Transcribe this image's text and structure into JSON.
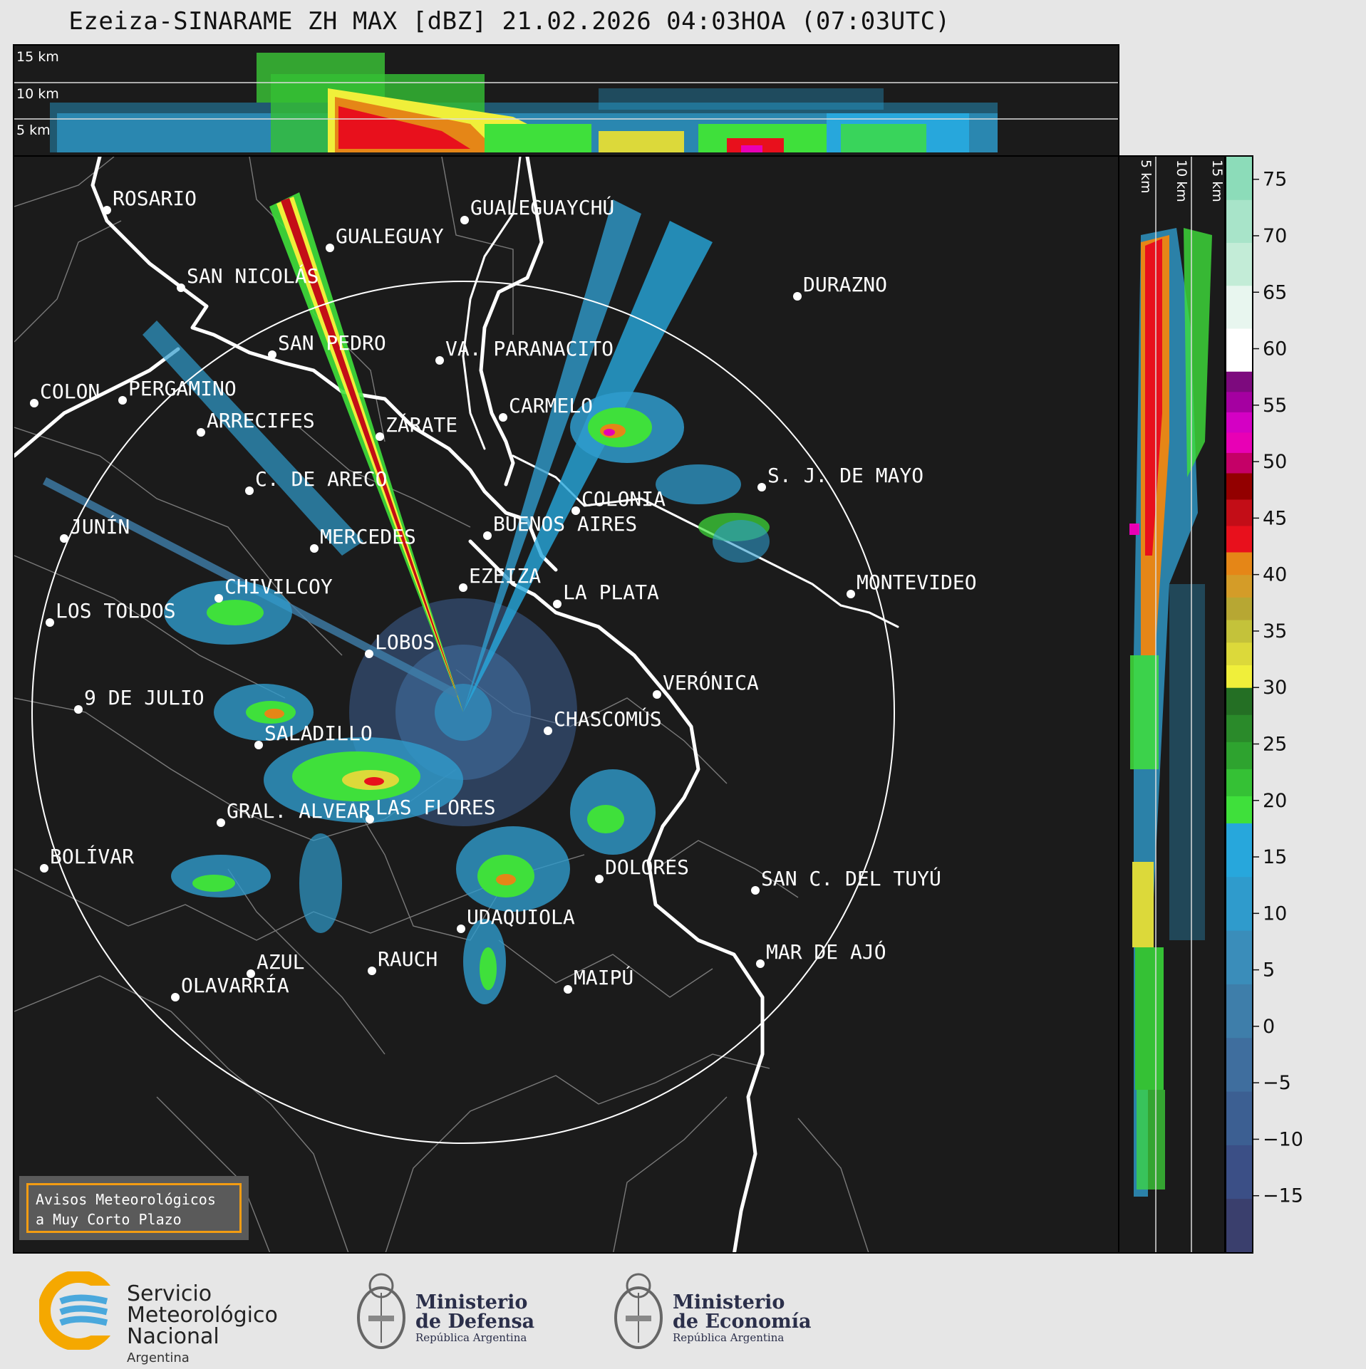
{
  "title": "Ezeiza-SINARAME ZH MAX [dBZ] 21.02.2026 04:03HOA (07:03UTC)",
  "top_panel": {
    "altitude_labels": [
      "15 km",
      "10 km",
      "5 km"
    ]
  },
  "side_panel": {
    "altitude_labels": [
      "5 km",
      "10 km",
      "15 km"
    ]
  },
  "colorbar": {
    "unit": "dBZ",
    "ticks": [
      "75",
      "70",
      "65",
      "60",
      "55",
      "50",
      "45",
      "40",
      "35",
      "30",
      "25",
      "20",
      "15",
      "10",
      "5",
      "0",
      "−5",
      "−10",
      "−15"
    ],
    "range": [
      -20,
      77
    ],
    "bands": [
      {
        "from": -20,
        "to": 18,
        "colors": [
          "#3a3f6d",
          "#3b4f86",
          "#3c5f92",
          "#3f6e9e",
          "#3e7eaa",
          "#3a8dba",
          "#2f9bcc",
          "#27a7dc"
        ]
      },
      {
        "from": 18,
        "to": 30,
        "colors": [
          "#3fe03b",
          "#35c135",
          "#2ea32f",
          "#2a8a2a",
          "#246f24"
        ]
      },
      {
        "from": 30,
        "to": 42,
        "colors": [
          "#f0ef3a",
          "#dcd93a",
          "#c4c23a",
          "#b7a733",
          "#d49c28",
          "#e58617"
        ]
      },
      {
        "from": 42,
        "to": 49,
        "colors": [
          "#e8101c",
          "#c30d17",
          "#930000"
        ]
      },
      {
        "from": 49,
        "to": 58,
        "colors": [
          "#c50067",
          "#e800b5",
          "#d400c4",
          "#a500a1",
          "#7d0a7e"
        ]
      },
      {
        "from": 58,
        "to": 77,
        "colors": [
          "#ffffff",
          "#e8f6ef",
          "#c3ecd7",
          "#a8e4c9",
          "#8cdcb9"
        ]
      }
    ]
  },
  "cities": [
    {
      "name": "ROSARIO"
    },
    {
      "name": "GUALEGUAYCHÚ"
    },
    {
      "name": "GUALEGUAY"
    },
    {
      "name": "SAN NICOLÁS"
    },
    {
      "name": "DURAZNO"
    },
    {
      "name": "SAN PEDRO"
    },
    {
      "name": "VA. PARANACITO"
    },
    {
      "name": "COLON"
    },
    {
      "name": "PERGAMINO"
    },
    {
      "name": "CARMELO"
    },
    {
      "name": "ARRECIFES"
    },
    {
      "name": "ZÁRATE"
    },
    {
      "name": "C. DE ARECO"
    },
    {
      "name": "S. J. DE MAYO"
    },
    {
      "name": "COLONIA"
    },
    {
      "name": "JUNÍN"
    },
    {
      "name": "BUENOS AIRES"
    },
    {
      "name": "MERCEDES"
    },
    {
      "name": "EZEIZA"
    },
    {
      "name": "MONTEVIDEO"
    },
    {
      "name": "CHIVILCOY"
    },
    {
      "name": "LA PLATA"
    },
    {
      "name": "LOS TOLDOS"
    },
    {
      "name": "LOBOS"
    },
    {
      "name": "VERÓNICA"
    },
    {
      "name": "9 DE JULIO"
    },
    {
      "name": "CHASCOMÚS"
    },
    {
      "name": "SALADILLO"
    },
    {
      "name": "GRAL. ALVEAR"
    },
    {
      "name": "LAS FLORES"
    },
    {
      "name": "BOLÍVAR"
    },
    {
      "name": "DOLORES"
    },
    {
      "name": "SAN C. DEL TUYÚ"
    },
    {
      "name": "UDAQUIOLA"
    },
    {
      "name": "AZUL"
    },
    {
      "name": "RAUCH"
    },
    {
      "name": "MAR DE AJÓ"
    },
    {
      "name": "OLAVARRÍA"
    },
    {
      "name": "MAIPÚ"
    }
  ],
  "notice": {
    "line1": "Avisos Meteorológicos",
    "line2": "a Muy Corto Plazo"
  },
  "footer": {
    "smn": {
      "line1": "Servicio",
      "line2": "Meteorológico",
      "line3": "Nacional",
      "line4": "Argentina",
      "colors": [
        "#f5a800",
        "#4aa8dc"
      ]
    },
    "defensa": {
      "line1": "Ministerio",
      "line2": "de Defensa",
      "line3": "República Argentina"
    },
    "economia": {
      "line1": "Ministerio",
      "line2": "de Economía",
      "line3": "República Argentina"
    }
  }
}
